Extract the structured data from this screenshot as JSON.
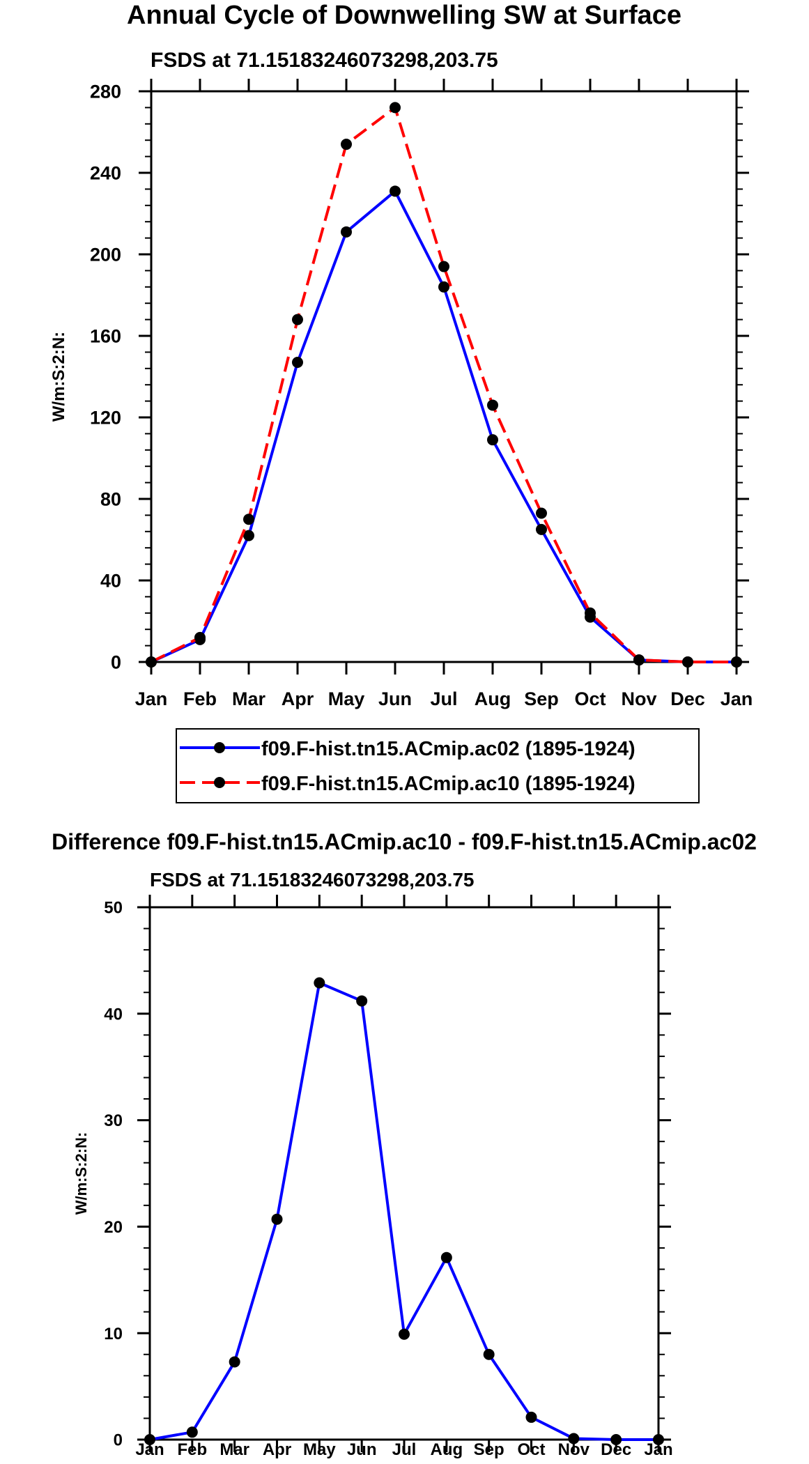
{
  "chart_data": [
    {
      "type": "line",
      "title": "Annual Cycle of Downwelling SW at Surface",
      "subtitle": "FSDS at 71.15183246073298,203.75",
      "xlabel": "",
      "ylabel": "W/m:S:2:N:",
      "categories": [
        "Jan",
        "Feb",
        "Mar",
        "Apr",
        "May",
        "Jun",
        "Jul",
        "Aug",
        "Sep",
        "Oct",
        "Nov",
        "Dec",
        "Jan"
      ],
      "ylim": [
        0,
        280
      ],
      "yticks": [
        0,
        40,
        80,
        120,
        160,
        200,
        240,
        280
      ],
      "series": [
        {
          "name": "f09.F-hist.tn15.ACmip.ac02 (1895-1924)",
          "color": "#0000ff",
          "dash": "solid",
          "values": [
            0,
            11,
            62,
            147,
            211,
            231,
            184,
            109,
            65,
            22,
            1,
            0,
            0
          ]
        },
        {
          "name": "f09.F-hist.tn15.ACmip.ac10 (1895-1924)",
          "color": "#ff0000",
          "dash": "dashed",
          "values": [
            0,
            12,
            70,
            168,
            254,
            272,
            194,
            126,
            73,
            24,
            1,
            0,
            0
          ]
        }
      ],
      "legend": "bottom"
    },
    {
      "type": "line",
      "title": "Difference f09.F-hist.tn15.ACmip.ac10 - f09.F-hist.tn15.ACmip.ac02",
      "subtitle": "FSDS at 71.15183246073298,203.75",
      "xlabel": "",
      "ylabel": "W/m:S:2:N:",
      "categories": [
        "Jan",
        "Feb",
        "Mar",
        "Apr",
        "May",
        "Jun",
        "Jul",
        "Aug",
        "Sep",
        "Oct",
        "Nov",
        "Dec",
        "Jan"
      ],
      "ylim": [
        0,
        50
      ],
      "yticks": [
        0,
        10,
        20,
        30,
        40,
        50
      ],
      "series": [
        {
          "name": "Difference",
          "color": "#0000ff",
          "dash": "solid",
          "values": [
            0,
            0.7,
            7.3,
            20.7,
            42.9,
            41.2,
            9.9,
            17.1,
            8.0,
            2.1,
            0.1,
            0,
            0
          ]
        }
      ]
    }
  ]
}
